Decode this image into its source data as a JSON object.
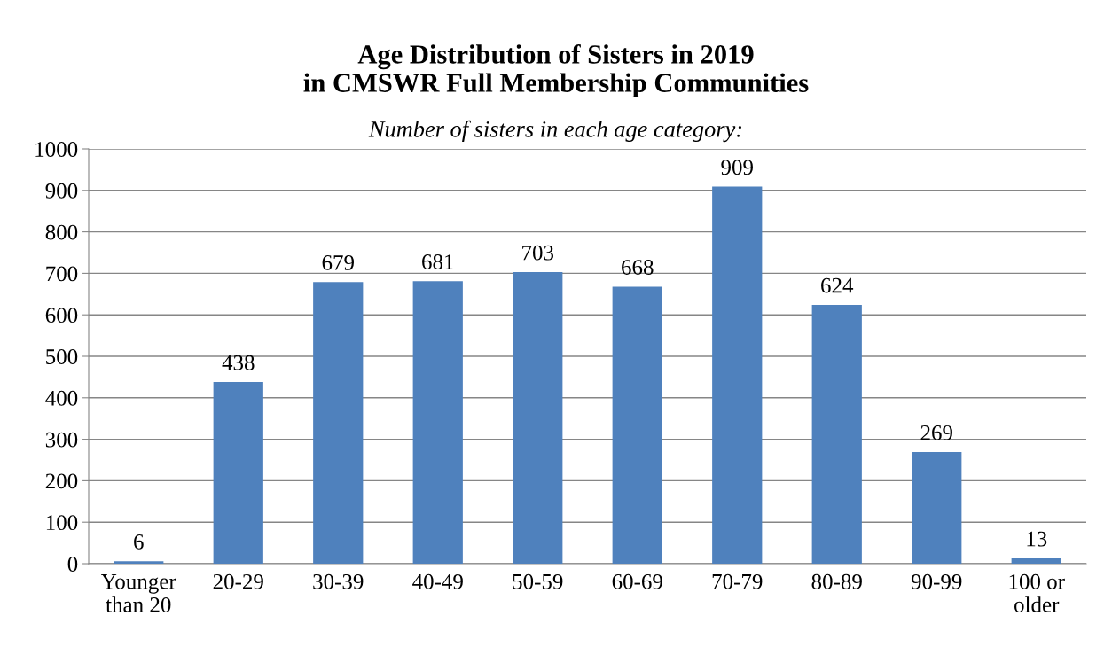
{
  "chart_data": {
    "type": "bar",
    "title": "Age Distribution of Sisters in 2019\nin CMSWR Full Membership Communities",
    "subtitle": "Number of sisters in each age category:",
    "categories": [
      "Younger\nthan 20",
      "20-29",
      "30-39",
      "40-49",
      "50-59",
      "60-69",
      "70-79",
      "80-89",
      "90-99",
      "100 or\nolder"
    ],
    "values": [
      6,
      438,
      679,
      681,
      703,
      668,
      909,
      624,
      269,
      13
    ],
    "color": "#4f81bd",
    "ylim": [
      0,
      1000
    ],
    "yticks": [
      0,
      100,
      200,
      300,
      400,
      500,
      600,
      700,
      800,
      900,
      1000
    ],
    "grid": "y",
    "data_labels": true,
    "legend": false
  }
}
